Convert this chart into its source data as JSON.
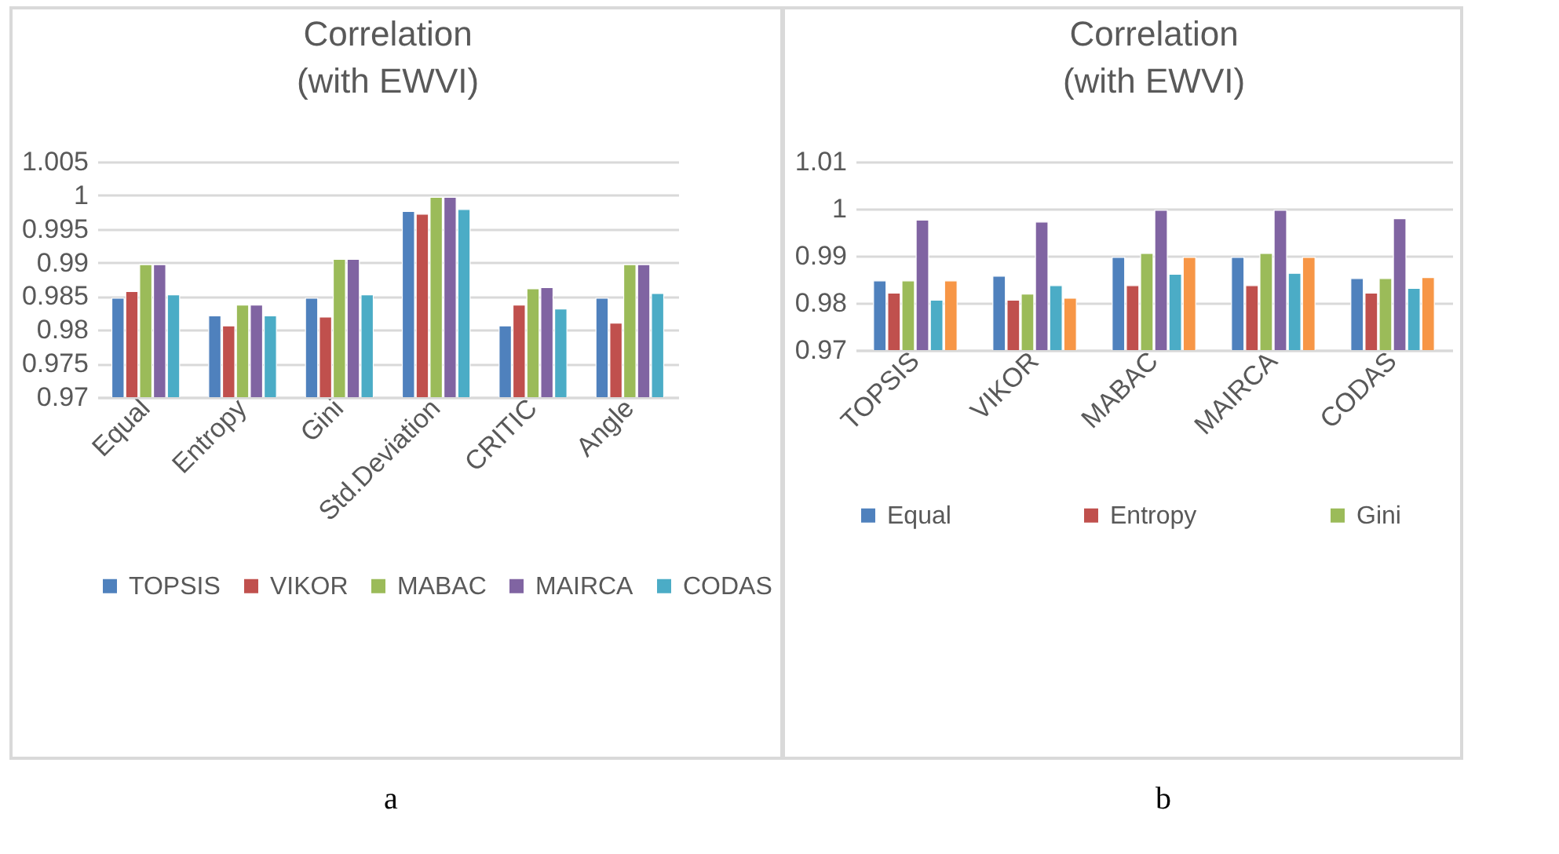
{
  "chart_data": [
    {
      "type": "bar",
      "title": "Correlation\n(with EWVI)",
      "categories": [
        "Equal",
        "Entropy",
        "Gini",
        "Std.Deviation",
        "CRITIC",
        "Angle"
      ],
      "series": [
        {
          "name": "TOPSIS",
          "color": "#4f81bd",
          "values": [
            0.9847,
            0.9821,
            0.9847,
            0.9976,
            0.9806,
            0.9847
          ]
        },
        {
          "name": "VIKOR",
          "color": "#c0504d",
          "values": [
            0.9857,
            0.9806,
            0.9819,
            0.9972,
            0.9837,
            0.981
          ]
        },
        {
          "name": "MABAC",
          "color": "#9bbb59",
          "values": [
            0.9897,
            0.9837,
            0.9905,
            0.9997,
            0.9861,
            0.9897
          ]
        },
        {
          "name": "MAIRCA",
          "color": "#8064a2",
          "values": [
            0.9897,
            0.9837,
            0.9905,
            0.9997,
            0.9863,
            0.9897
          ]
        },
        {
          "name": "CODAS",
          "color": "#4bacc6",
          "values": [
            0.9852,
            0.9821,
            0.9852,
            0.9979,
            0.9831,
            0.9854
          ]
        }
      ],
      "ylim": [
        0.97,
        1.005
      ],
      "yticks": [
        0.97,
        0.975,
        0.98,
        0.985,
        0.99,
        0.995,
        1,
        1.005
      ],
      "grid": "y",
      "legend": "bottom",
      "annotations": [
        "a"
      ]
    },
    {
      "type": "bar",
      "title": "Correlation\n(with EWVI)",
      "categories": [
        "TOPSIS",
        "VIKOR",
        "MABAC",
        "MAIRCA",
        "CODAS"
      ],
      "series": [
        {
          "name": "Equal",
          "color": "#4f81bd",
          "values": [
            0.9847,
            0.9857,
            0.9897,
            0.9897,
            0.9852
          ]
        },
        {
          "name": "Entropy",
          "color": "#c0504d",
          "values": [
            0.9821,
            0.9806,
            0.9837,
            0.9837,
            0.9821
          ]
        },
        {
          "name": "Gini",
          "color": "#9bbb59",
          "values": [
            0.9847,
            0.9819,
            0.9905,
            0.9905,
            0.9852
          ]
        },
        {
          "color": "#8064a2",
          "values": [
            0.9976,
            0.9972,
            0.9997,
            0.9997,
            0.9979
          ]
        },
        {
          "color": "#4bacc6",
          "values": [
            0.9806,
            0.9837,
            0.9861,
            0.9863,
            0.9831
          ]
        },
        {
          "color": "#f79646",
          "values": [
            0.9847,
            0.981,
            0.9897,
            0.9897,
            0.9854
          ]
        }
      ],
      "ylim": [
        0.97,
        1.01
      ],
      "yticks": [
        0.97,
        0.98,
        0.99,
        1,
        1.01
      ],
      "grid": "y",
      "legend": "bottom",
      "annotations": [
        "b"
      ]
    }
  ]
}
